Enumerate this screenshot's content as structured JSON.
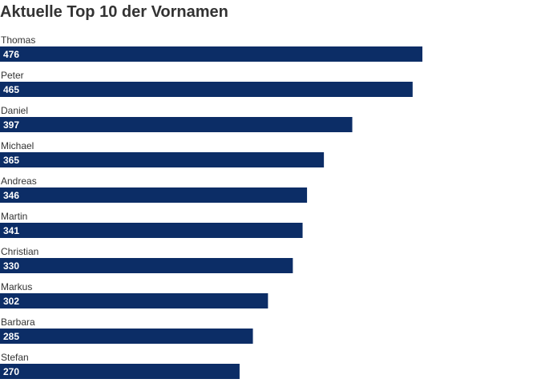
{
  "chart_data": {
    "type": "bar",
    "orientation": "horizontal",
    "title": "Aktuelle Top 10 der Vornamen",
    "categories": [
      "Thomas",
      "Peter",
      "Daniel",
      "Michael",
      "Andreas",
      "Martin",
      "Christian",
      "Markus",
      "Barbara",
      "Stefan"
    ],
    "values": [
      476,
      465,
      397,
      365,
      346,
      341,
      330,
      302,
      285,
      270
    ],
    "xlabel": "",
    "ylabel": "",
    "grid": false,
    "legend": "none",
    "colors": {
      "bar": "#0c2d66",
      "value_text": "#ffffff",
      "label_text": "#333333"
    }
  }
}
